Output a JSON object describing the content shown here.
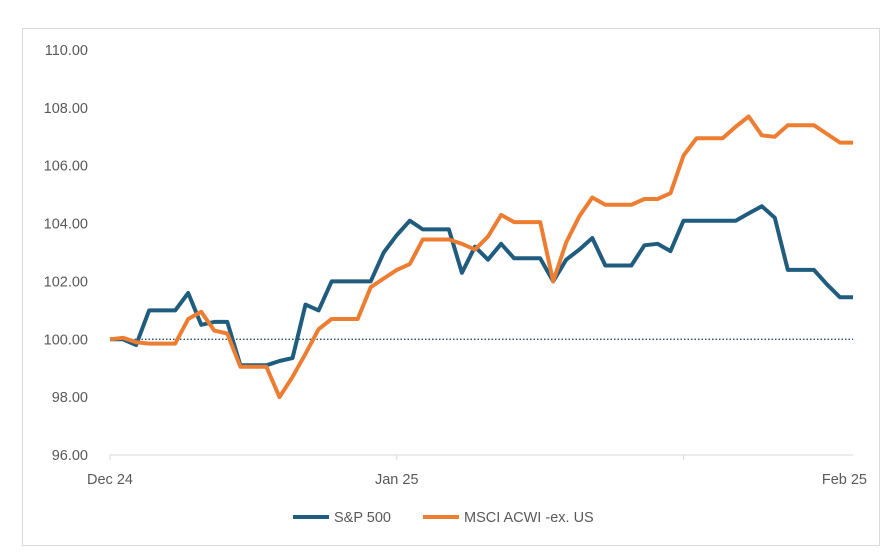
{
  "chart_data": {
    "type": "line",
    "title": "",
    "xlabel": "",
    "ylabel": "",
    "ylim": [
      96,
      110
    ],
    "y_ticks": [
      "110.00",
      "108.00",
      "106.00",
      "104.00",
      "102.00",
      "100.00",
      "98.00",
      "96.00"
    ],
    "x_ticks": [
      {
        "label": "Dec 24",
        "index": 0
      },
      {
        "label": "Jan 25",
        "index": 22
      },
      {
        "label": "Feb 25",
        "index": 44
      }
    ],
    "reference_line": {
      "value": 100,
      "style": "dotted",
      "color": "#1F4E79"
    },
    "legend_position": "bottom",
    "series": [
      {
        "name": "S&P 500",
        "color": "#1F5C7E",
        "values": [
          100.0,
          100.0,
          99.8,
          101.0,
          101.0,
          101.0,
          101.6,
          100.5,
          100.6,
          100.6,
          99.1,
          99.1,
          99.1,
          99.25,
          99.35,
          101.2,
          101.0,
          102.0,
          102.0,
          102.0,
          102.0,
          103.0,
          103.6,
          104.1,
          103.8,
          103.8,
          103.8,
          102.3,
          103.2,
          102.75,
          103.3,
          102.8,
          102.8,
          102.8,
          102.0,
          102.75,
          103.1,
          103.5,
          102.55,
          102.55,
          102.55,
          103.25,
          103.3,
          103.05,
          104.1,
          104.1,
          104.1,
          104.1,
          104.1,
          104.35,
          104.6,
          104.2,
          102.4,
          102.4,
          102.4,
          101.9,
          101.45,
          101.45
        ]
      },
      {
        "name": "MSCI ACWI -ex. US",
        "color": "#ED7D31",
        "values": [
          100.0,
          100.05,
          99.9,
          99.85,
          99.85,
          99.85,
          100.7,
          100.95,
          100.3,
          100.2,
          99.05,
          99.05,
          99.05,
          98.0,
          98.7,
          99.5,
          100.35,
          100.7,
          100.7,
          100.7,
          101.8,
          102.1,
          102.4,
          102.6,
          103.45,
          103.45,
          103.45,
          103.3,
          103.1,
          103.55,
          104.3,
          104.05,
          104.05,
          104.05,
          102.0,
          103.35,
          104.25,
          104.9,
          104.65,
          104.65,
          104.65,
          104.85,
          104.85,
          105.05,
          106.35,
          106.95,
          106.95,
          106.95,
          107.35,
          107.7,
          107.05,
          107.0,
          107.4,
          107.4,
          107.4,
          107.1,
          106.8,
          106.8
        ]
      }
    ]
  }
}
